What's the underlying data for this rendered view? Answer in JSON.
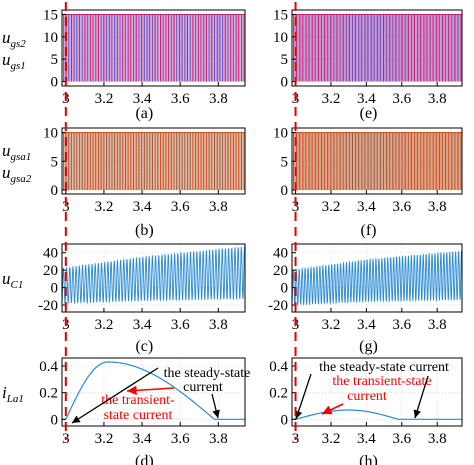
{
  "chart_data": [
    {
      "id": "a",
      "label": "(a)",
      "type": "line",
      "ylabels": [
        "u",
        "gs2",
        "u",
        "gs1"
      ],
      "yticks": [
        0,
        5,
        10,
        15
      ],
      "ylim": [
        -1,
        16
      ],
      "xticks": [
        3,
        3.2,
        3.4,
        3.6,
        3.8
      ],
      "xlim": [
        2.98,
        3.94
      ],
      "event_x": 3.0,
      "series": [
        {
          "kind": "pwm",
          "high": 15,
          "low": 0,
          "freq": 60,
          "colors": [
            "#c0207a",
            "#7050c8"
          ]
        }
      ]
    },
    {
      "id": "e",
      "label": "(e)",
      "type": "line",
      "yticks": [
        0,
        5,
        10,
        15
      ],
      "ylim": [
        -1,
        16
      ],
      "xticks": [
        3,
        3.2,
        3.4,
        3.6,
        3.8
      ],
      "xlim": [
        2.98,
        3.94
      ],
      "event_x": 3.0,
      "series": [
        {
          "kind": "pwm",
          "high": 15,
          "low": 0,
          "freq": 60,
          "colors": [
            "#c0207a",
            "#7050c8"
          ]
        }
      ]
    },
    {
      "id": "b",
      "label": "(b)",
      "type": "line",
      "ylabels": [
        "u",
        "gsa1",
        "u",
        "gsa2"
      ],
      "yticks": [
        0,
        5,
        10
      ],
      "ylim": [
        -0.7,
        10.8
      ],
      "xticks": [
        3,
        3.2,
        3.4,
        3.6,
        3.8
      ],
      "xlim": [
        2.98,
        3.94
      ],
      "event_x": 3.0,
      "series": [
        {
          "kind": "pwm",
          "high": 10,
          "low": 0,
          "freq": 60,
          "colors": [
            "#d4501c",
            "#9a5a3a"
          ]
        }
      ]
    },
    {
      "id": "f",
      "label": "(f)",
      "type": "line",
      "yticks": [
        0,
        5,
        10
      ],
      "ylim": [
        -0.7,
        10.8
      ],
      "xticks": [
        3,
        3.2,
        3.4,
        3.6,
        3.8
      ],
      "xlim": [
        2.98,
        3.94
      ],
      "event_x": 3.0,
      "series": [
        {
          "kind": "pwm",
          "high": 10,
          "low": 0,
          "freq": 60,
          "colors": [
            "#d4501c",
            "#9a5a3a"
          ]
        }
      ]
    },
    {
      "id": "c",
      "label": "(c)",
      "type": "line",
      "ylabels": [
        "u",
        "C1"
      ],
      "yticks": [
        -20,
        0,
        20,
        40
      ],
      "ylim": [
        -28,
        50
      ],
      "xticks": [
        3,
        3.2,
        3.4,
        3.6,
        3.8
      ],
      "xlim": [
        2.98,
        3.94
      ],
      "event_x": 3.0,
      "series": [
        {
          "kind": "ripple",
          "color": "#2a8ad4",
          "freq": 60,
          "center": [
            2,
            10,
            17
          ],
          "amp": [
            20,
            25,
            30
          ],
          "time": [
            2.98,
            3.4,
            3.94
          ]
        }
      ]
    },
    {
      "id": "g",
      "label": "(g)",
      "type": "line",
      "yticks": [
        -20,
        0,
        20,
        40
      ],
      "ylim": [
        -28,
        50
      ],
      "xticks": [
        3,
        3.2,
        3.4,
        3.6,
        3.8
      ],
      "xlim": [
        2.98,
        3.94
      ],
      "event_x": 3.0,
      "series": [
        {
          "kind": "ripple",
          "color": "#2a8ad4",
          "freq": 60,
          "center": [
            0,
            8,
            14
          ],
          "amp": [
            20,
            24,
            28
          ],
          "time": [
            2.98,
            3.4,
            3.94
          ]
        }
      ]
    },
    {
      "id": "d",
      "label": "(d)",
      "type": "line",
      "ylabels": [
        "i",
        "La1"
      ],
      "yticks": [
        0,
        0.2,
        0.4
      ],
      "ylim": [
        -0.05,
        0.46
      ],
      "xticks": [
        3,
        3.2,
        3.4,
        3.6,
        3.8
      ],
      "xlim": [
        2.98,
        3.94
      ],
      "event_x": 3.0,
      "series": [
        {
          "kind": "hump",
          "color": "#2a8ad4",
          "t0": 3.0,
          "t1": 3.78,
          "peak": 0.43,
          "peak_x": 3.22
        }
      ],
      "annotations": [
        {
          "text": [
            "the steady-state",
            "current"
          ],
          "color": "#000000"
        },
        {
          "text": [
            "the transient-",
            "state current"
          ],
          "color": "#ff0000"
        }
      ]
    },
    {
      "id": "h",
      "label": "(h)",
      "type": "line",
      "yticks": [
        0,
        0.2,
        0.4
      ],
      "ylim": [
        -0.05,
        0.46
      ],
      "xticks": [
        3,
        3.2,
        3.4,
        3.6,
        3.8
      ],
      "xlim": [
        2.98,
        3.94
      ],
      "event_x": 3.0,
      "series": [
        {
          "kind": "hump",
          "color": "#2a8ad4",
          "t0": 3.0,
          "t1": 3.58,
          "peak": 0.07,
          "peak_x": 3.3
        }
      ],
      "annotations": [
        {
          "text": [
            "the steady-state current"
          ],
          "color": "#000000"
        },
        {
          "text": [
            "the transient-state",
            "current"
          ],
          "color": "#ff0000"
        }
      ]
    }
  ]
}
